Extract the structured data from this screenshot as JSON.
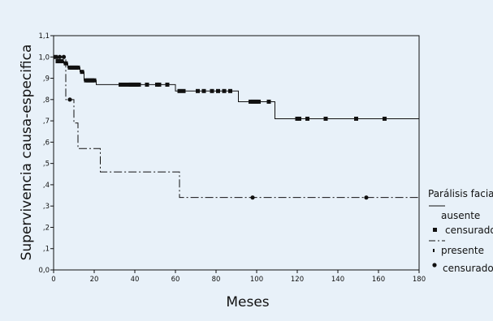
{
  "chart_data": {
    "type": "line",
    "title": "",
    "xlabel": "Meses",
    "ylabel": "Supervivencia causa-especifica",
    "xlim": [
      0,
      180
    ],
    "ylim": [
      0.0,
      1.1
    ],
    "x_ticks": [
      "0",
      "20",
      "40",
      "60",
      "80",
      "100",
      "120",
      "140",
      "160",
      "180"
    ],
    "y_ticks": [
      "0,0",
      ",1",
      ",2",
      ",3",
      ",4",
      ",5",
      ",6",
      ",7",
      ",8",
      ",9",
      "1,0",
      "1,1"
    ],
    "grid": false,
    "legend_placement": "right",
    "legend": {
      "title": "Parálisis facia",
      "items": [
        "ausente",
        "censurado",
        "presente",
        "censurado"
      ]
    },
    "series": [
      {
        "name": "ausente",
        "style": "solid",
        "steps": [
          [
            0,
            1.0
          ],
          [
            2,
            0.98
          ],
          [
            5,
            0.97
          ],
          [
            7,
            0.95
          ],
          [
            13,
            0.93
          ],
          [
            15,
            0.89
          ],
          [
            21,
            0.87
          ],
          [
            60,
            0.84
          ],
          [
            91,
            0.79
          ],
          [
            109,
            0.71
          ],
          [
            180,
            0.71
          ]
        ],
        "censored": [
          1,
          2,
          3,
          4,
          6,
          8,
          9,
          10,
          11,
          12,
          14,
          16,
          17,
          18,
          19,
          20,
          33,
          35,
          37,
          38,
          39,
          40,
          41,
          42,
          46,
          51,
          52,
          56,
          62,
          64,
          71,
          74,
          78,
          81,
          84,
          87,
          97,
          98,
          99,
          100,
          101,
          106,
          120,
          121,
          125,
          134,
          149,
          163
        ]
      },
      {
        "name": "presente",
        "style": "dashdot",
        "steps": [
          [
            0,
            1.0
          ],
          [
            6,
            0.8
          ],
          [
            10,
            0.69
          ],
          [
            12,
            0.57
          ],
          [
            23,
            0.46
          ],
          [
            62,
            0.34
          ],
          [
            180,
            0.34
          ]
        ],
        "censored": [
          3,
          5,
          8,
          98,
          154
        ]
      }
    ]
  }
}
